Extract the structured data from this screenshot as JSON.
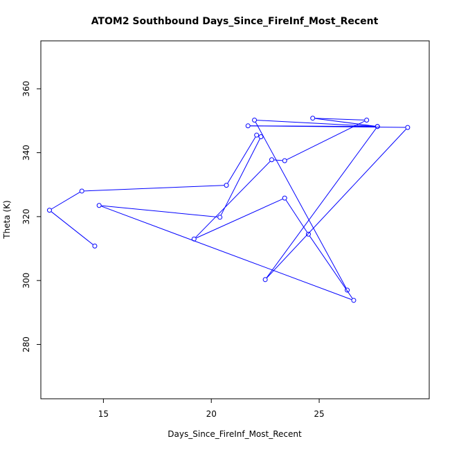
{
  "chart_data": {
    "type": "line",
    "title": "ATOM2 Southbound Days_Since_FireInf_Most_Recent",
    "xlabel": "Days_Since_FireInf_Most_Recent",
    "ylabel": "Theta (K)",
    "xlim": [
      12.1,
      30.1
    ],
    "ylim": [
      263.0,
      375.0
    ],
    "xticks": [
      15,
      20,
      25
    ],
    "yticks": [
      280,
      300,
      320,
      340,
      360
    ],
    "grid": false,
    "legend": "none",
    "color": "#0000ff",
    "series": [
      {
        "points": [
          [
            14.6,
            310.8
          ],
          [
            12.5,
            322.0
          ],
          [
            14.0,
            328.0
          ],
          [
            20.7,
            329.8
          ],
          [
            22.1,
            345.5
          ],
          [
            22.3,
            345.0
          ],
          [
            20.4,
            319.8
          ],
          [
            14.8,
            323.5
          ],
          [
            26.6,
            293.8
          ],
          [
            24.5,
            314.5
          ],
          [
            23.4,
            325.8
          ],
          [
            19.2,
            313.0
          ],
          [
            22.8,
            337.8
          ],
          [
            23.4,
            337.5
          ],
          [
            27.2,
            350.2
          ],
          [
            24.7,
            350.8
          ],
          [
            27.7,
            348.2
          ],
          [
            21.7,
            348.4
          ],
          [
            29.1,
            347.9
          ],
          [
            22.5,
            300.3
          ],
          [
            27.7,
            348.2
          ],
          [
            22.0,
            350.2
          ],
          [
            26.3,
            297.0
          ]
        ]
      }
    ]
  }
}
